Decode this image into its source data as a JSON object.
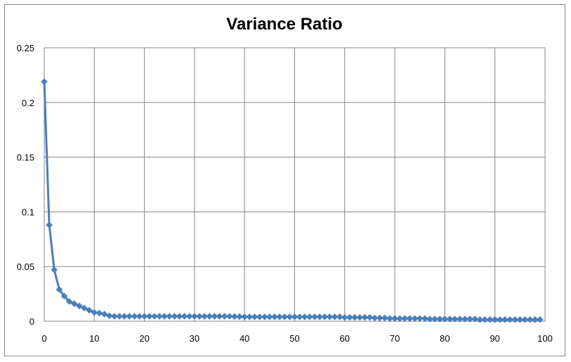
{
  "chart_data": {
    "type": "line",
    "title": "Variance Ratio",
    "xlabel": "",
    "ylabel": "",
    "xlim": [
      0,
      100
    ],
    "ylim": [
      0,
      0.25
    ],
    "x_ticks": [
      0,
      10,
      20,
      30,
      40,
      50,
      60,
      70,
      80,
      90,
      100
    ],
    "y_ticks": [
      0,
      0.05,
      0.1,
      0.15,
      0.2,
      0.25
    ],
    "x_tick_labels": [
      "0",
      "10",
      "20",
      "30",
      "40",
      "50",
      "60",
      "70",
      "80",
      "90",
      "100"
    ],
    "y_tick_labels": [
      "0",
      "0.05",
      "0.1",
      "0.15",
      "0.2",
      "0.25"
    ],
    "grid": true,
    "legend": "none",
    "marker": "diamond",
    "series": [
      {
        "color": "#4a7ebb",
        "x": [
          0,
          1,
          2,
          3,
          4,
          5,
          6,
          7,
          8,
          9,
          10,
          11,
          12,
          13,
          14,
          15,
          16,
          17,
          18,
          19,
          20,
          21,
          22,
          23,
          24,
          25,
          26,
          27,
          28,
          29,
          30,
          31,
          32,
          33,
          34,
          35,
          36,
          37,
          38,
          39,
          40,
          41,
          42,
          43,
          44,
          45,
          46,
          47,
          48,
          49,
          50,
          51,
          52,
          53,
          54,
          55,
          56,
          57,
          58,
          59,
          60,
          61,
          62,
          63,
          64,
          65,
          66,
          67,
          68,
          69,
          70,
          71,
          72,
          73,
          74,
          75,
          76,
          77,
          78,
          79,
          80,
          81,
          82,
          83,
          84,
          85,
          86,
          87,
          88,
          89,
          90,
          91,
          92,
          93,
          94,
          95,
          96,
          97,
          98,
          99
        ],
        "values": [
          0.219,
          0.088,
          0.047,
          0.029,
          0.023,
          0.018,
          0.016,
          0.014,
          0.012,
          0.01,
          0.008,
          0.0075,
          0.0065,
          0.005,
          0.0045,
          0.0045,
          0.0045,
          0.0045,
          0.0045,
          0.0045,
          0.0045,
          0.0045,
          0.0045,
          0.0045,
          0.0045,
          0.0045,
          0.0045,
          0.0045,
          0.0045,
          0.0045,
          0.0045,
          0.0045,
          0.0045,
          0.0045,
          0.0045,
          0.0045,
          0.0045,
          0.0045,
          0.0043,
          0.0042,
          0.004,
          0.004,
          0.004,
          0.004,
          0.004,
          0.004,
          0.004,
          0.004,
          0.004,
          0.004,
          0.004,
          0.004,
          0.004,
          0.004,
          0.004,
          0.004,
          0.004,
          0.004,
          0.004,
          0.004,
          0.0035,
          0.0035,
          0.0035,
          0.0035,
          0.0035,
          0.0035,
          0.003,
          0.003,
          0.003,
          0.0025,
          0.0025,
          0.0025,
          0.0025,
          0.0025,
          0.0025,
          0.0025,
          0.0025,
          0.002,
          0.002,
          0.002,
          0.002,
          0.002,
          0.002,
          0.002,
          0.002,
          0.002,
          0.002,
          0.0015,
          0.0015,
          0.0015,
          0.0015,
          0.0015,
          0.0015,
          0.0015,
          0.0015,
          0.0015,
          0.0015,
          0.0015,
          0.0015,
          0.0015
        ]
      }
    ]
  }
}
